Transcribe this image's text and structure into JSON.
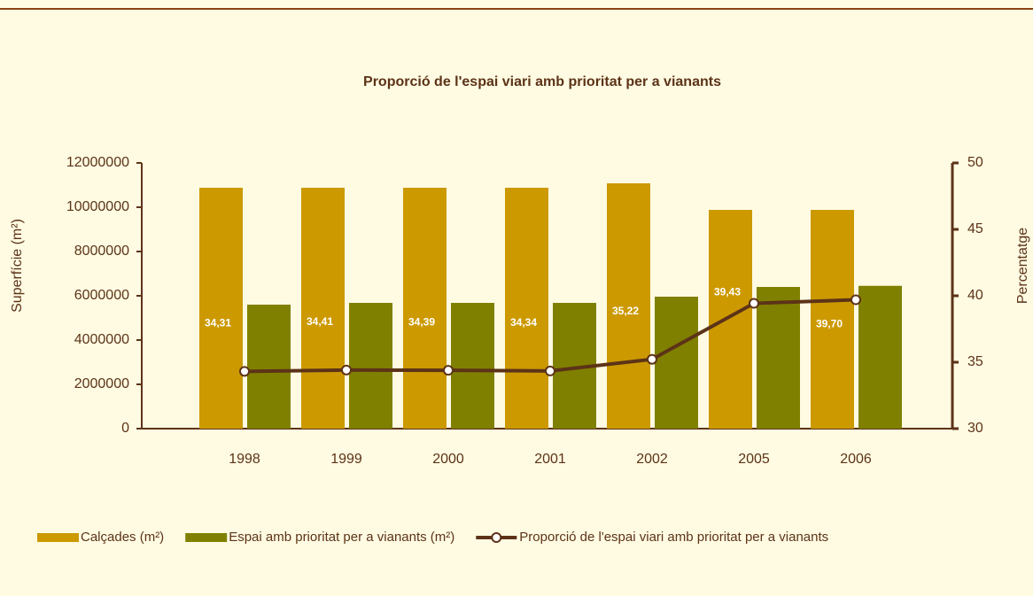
{
  "chart_data": {
    "type": "bar_line",
    "title": "Proporció de l'espai viari amb prioritat per a vianants",
    "y_label": "Superfície (m²)",
    "y2_label": "Percentatge",
    "categories": [
      "1998",
      "1999",
      "2000",
      "2001",
      "2002",
      "2005",
      "2006"
    ],
    "series": [
      {
        "name": "Calçades (m²)",
        "type": "bar",
        "color": "#cc9900",
        "values": [
          10880000,
          10880000,
          10880000,
          10880000,
          11080000,
          9880000,
          9880000
        ]
      },
      {
        "name": "Espai amb prioritat per a vianants (m²)",
        "type": "bar",
        "color": "#808000",
        "values": [
          5600000,
          5680000,
          5680000,
          5680000,
          5960000,
          6400000,
          6450000
        ]
      },
      {
        "name": "Proporció de l'espai viari amb prioritat per a vianants",
        "type": "line",
        "axis": "y2",
        "color": "#5c3317",
        "values": [
          34.31,
          34.41,
          34.39,
          34.34,
          35.22,
          39.43,
          39.7
        ],
        "value_labels": [
          "34,31",
          "34,41",
          "34,39",
          "34,34",
          "35,22",
          "39,43",
          "39,70"
        ]
      }
    ],
    "ylim": [
      0,
      12000000
    ],
    "yticks": [
      0,
      2000000,
      4000000,
      6000000,
      8000000,
      10000000,
      12000000
    ],
    "y2lim": [
      30,
      50
    ],
    "y2ticks": [
      30,
      35,
      40,
      45,
      50
    ]
  }
}
